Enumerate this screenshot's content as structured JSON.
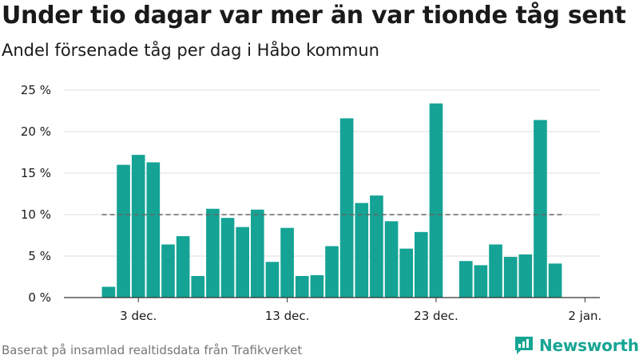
{
  "header": {
    "title": "Under tio dagar var mer än var tionde tåg sent",
    "subtitle": "Andel försenade tåg per dag i Håbo kommun"
  },
  "footer": {
    "source": "Baserat på insamlad realtidsdata från Trafikverket",
    "brand": "Newsworthy"
  },
  "colors": {
    "bar": "#14a395",
    "reference_line": "#666666",
    "grid": "#dddddd",
    "brand": "#16a594"
  },
  "chart_data": {
    "type": "bar",
    "title": "Under tio dagar var mer än var tionde tåg sent",
    "subtitle": "Andel försenade tåg per dag i Håbo kommun",
    "xlabel": "",
    "ylabel": "",
    "ylim": [
      0,
      25
    ],
    "y_ticks": [
      0,
      5,
      10,
      15,
      20,
      25
    ],
    "y_tick_labels": [
      "0 %",
      "5 %",
      "10 %",
      "15 %",
      "20 %",
      "25 %"
    ],
    "x_ticks": [
      {
        "date": "2023-12-03",
        "label": "3 dec."
      },
      {
        "date": "2023-12-13",
        "label": "13 dec."
      },
      {
        "date": "2023-12-23",
        "label": "23 dec."
      },
      {
        "date": "2024-01-02",
        "label": "2 jan."
      }
    ],
    "x_range": [
      "2023-11-28",
      "2024-01-03"
    ],
    "reference_line": {
      "value": 10,
      "style": "dashed"
    },
    "grid": true,
    "legend": "none",
    "data": [
      {
        "date": "2023-12-01",
        "value": 1.3
      },
      {
        "date": "2023-12-02",
        "value": 16.0
      },
      {
        "date": "2023-12-03",
        "value": 17.2
      },
      {
        "date": "2023-12-04",
        "value": 16.3
      },
      {
        "date": "2023-12-05",
        "value": 6.4
      },
      {
        "date": "2023-12-06",
        "value": 7.4
      },
      {
        "date": "2023-12-07",
        "value": 2.6
      },
      {
        "date": "2023-12-08",
        "value": 10.7
      },
      {
        "date": "2023-12-09",
        "value": 9.6
      },
      {
        "date": "2023-12-10",
        "value": 8.5
      },
      {
        "date": "2023-12-11",
        "value": 10.6
      },
      {
        "date": "2023-12-12",
        "value": 4.3
      },
      {
        "date": "2023-12-13",
        "value": 8.4
      },
      {
        "date": "2023-12-14",
        "value": 2.6
      },
      {
        "date": "2023-12-15",
        "value": 2.7
      },
      {
        "date": "2023-12-16",
        "value": 6.2
      },
      {
        "date": "2023-12-17",
        "value": 21.6
      },
      {
        "date": "2023-12-18",
        "value": 11.4
      },
      {
        "date": "2023-12-19",
        "value": 12.3
      },
      {
        "date": "2023-12-20",
        "value": 9.2
      },
      {
        "date": "2023-12-21",
        "value": 5.9
      },
      {
        "date": "2023-12-22",
        "value": 7.9
      },
      {
        "date": "2023-12-23",
        "value": 23.4
      },
      {
        "date": "2023-12-25",
        "value": 4.4
      },
      {
        "date": "2023-12-26",
        "value": 3.9
      },
      {
        "date": "2023-12-27",
        "value": 6.4
      },
      {
        "date": "2023-12-28",
        "value": 4.9
      },
      {
        "date": "2023-12-29",
        "value": 5.2
      },
      {
        "date": "2023-12-30",
        "value": 21.4
      },
      {
        "date": "2023-12-31",
        "value": 4.1
      }
    ]
  }
}
